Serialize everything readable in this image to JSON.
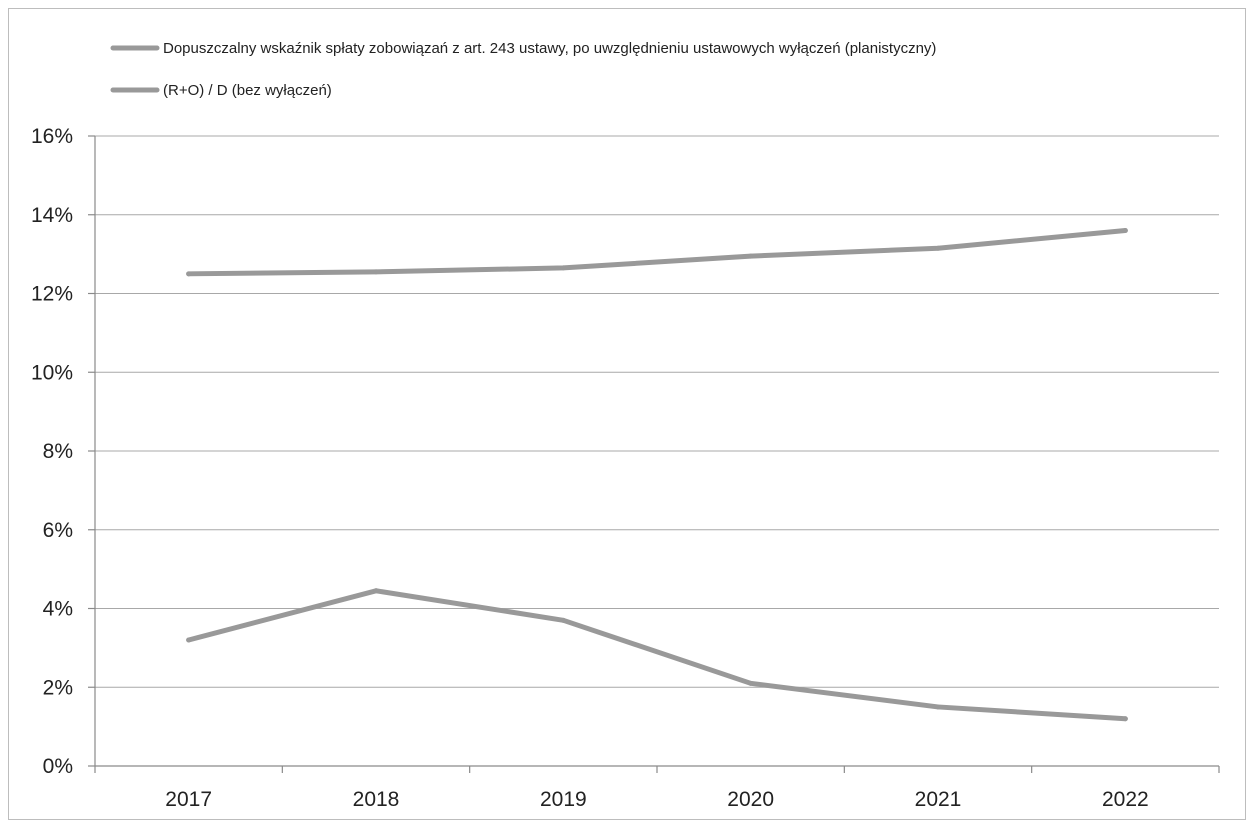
{
  "chart_data": {
    "type": "line",
    "categories": [
      "2017",
      "2018",
      "2019",
      "2020",
      "2021",
      "2022"
    ],
    "series": [
      {
        "name": "Dopuszczalny wskaźnik spłaty zobowiązań z art. 243 ustawy, po uwzględnieniu ustawowych wyłączeń (planistyczny)",
        "values": [
          12.5,
          12.55,
          12.65,
          12.95,
          13.15,
          13.6
        ],
        "color": "#999999"
      },
      {
        "name": "(R+O) / D (bez wyłączeń)",
        "values": [
          3.2,
          4.45,
          3.7,
          2.1,
          1.5,
          1.2
        ],
        "color": "#999999"
      }
    ],
    "ylim": [
      0,
      16
    ],
    "yticks": [
      0,
      2,
      4,
      6,
      8,
      10,
      12,
      14,
      16
    ],
    "ytick_labels": [
      "0%",
      "2%",
      "4%",
      "6%",
      "8%",
      "10%",
      "12%",
      "14%",
      "16%"
    ],
    "grid": true,
    "legend_position": "top-left",
    "title": "",
    "xlabel": "",
    "ylabel": ""
  }
}
